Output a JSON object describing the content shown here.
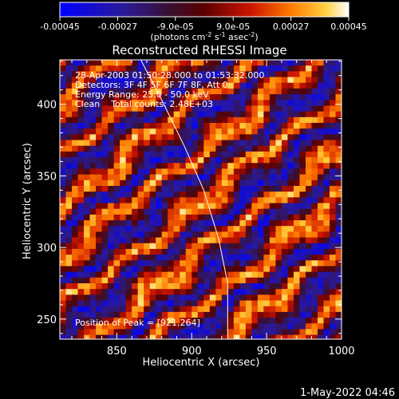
{
  "chart_data": {
    "type": "heatmap",
    "title": "Reconstructed RHESSI Image",
    "xlabel": "Heliocentric X (arcsec)",
    "ylabel": "Heliocentric Y (arcsec)",
    "xlim": [
      812,
      1000
    ],
    "ylim": [
      236,
      431
    ],
    "xticks": [
      {
        "value": 850,
        "label": "850"
      },
      {
        "value": 900,
        "label": "900"
      },
      {
        "value": 950,
        "label": "950"
      },
      {
        "value": 1000,
        "label": "1000"
      }
    ],
    "yticks": [
      {
        "value": 250,
        "label": "250"
      },
      {
        "value": 300,
        "label": "300"
      },
      {
        "value": 350,
        "label": "350"
      },
      {
        "value": 400,
        "label": "400"
      }
    ],
    "colorbar": {
      "range": [
        -0.00045,
        0.00045
      ],
      "ticks": [
        {
          "value": -0.00045,
          "label": "-0.00045"
        },
        {
          "value": -0.00027,
          "label": "-0.00027"
        },
        {
          "value": -9e-05,
          "label": "-9.0e-05"
        },
        {
          "value": 9e-05,
          "label": "9.0e-05"
        },
        {
          "value": 0.00027,
          "label": "0.00027"
        },
        {
          "value": 0.00045,
          "label": "0.00045"
        }
      ],
      "unit_main": "(photons cm",
      "unit_exp1": "-2",
      "unit_mid": " s",
      "unit_exp2": "-1",
      "unit_mid2": " asec",
      "unit_exp3": "-2",
      "unit_end": ")"
    },
    "annotations": [
      "28-Apr-2003 01:50:28.000 to 01:53:32.000",
      "Detectors: 3F 4F 5F 6F 7F 8F, Att 0",
      "Energy Range: 25.0 - 50.0 keV",
      "Clean    Total counts: 2.48E+03"
    ],
    "peak_label": "Position of Peak = [921,264]",
    "peak": [
      921,
      264
    ],
    "limb_curve": [
      [
        866,
        431
      ],
      [
        880,
        403
      ],
      [
        895,
        371
      ],
      [
        908,
        340
      ],
      [
        918,
        306
      ],
      [
        924,
        275
      ],
      [
        924,
        236
      ]
    ],
    "band_pattern": {
      "direction": [
        0.62,
        -0.78
      ],
      "period": 28,
      "amplitude": 0.00045
    }
  },
  "footer": {
    "date": "1-May-2022 04:46"
  },
  "colors": {
    "background": "#000000",
    "text": "#ffffff",
    "limb": "#ffffff"
  }
}
